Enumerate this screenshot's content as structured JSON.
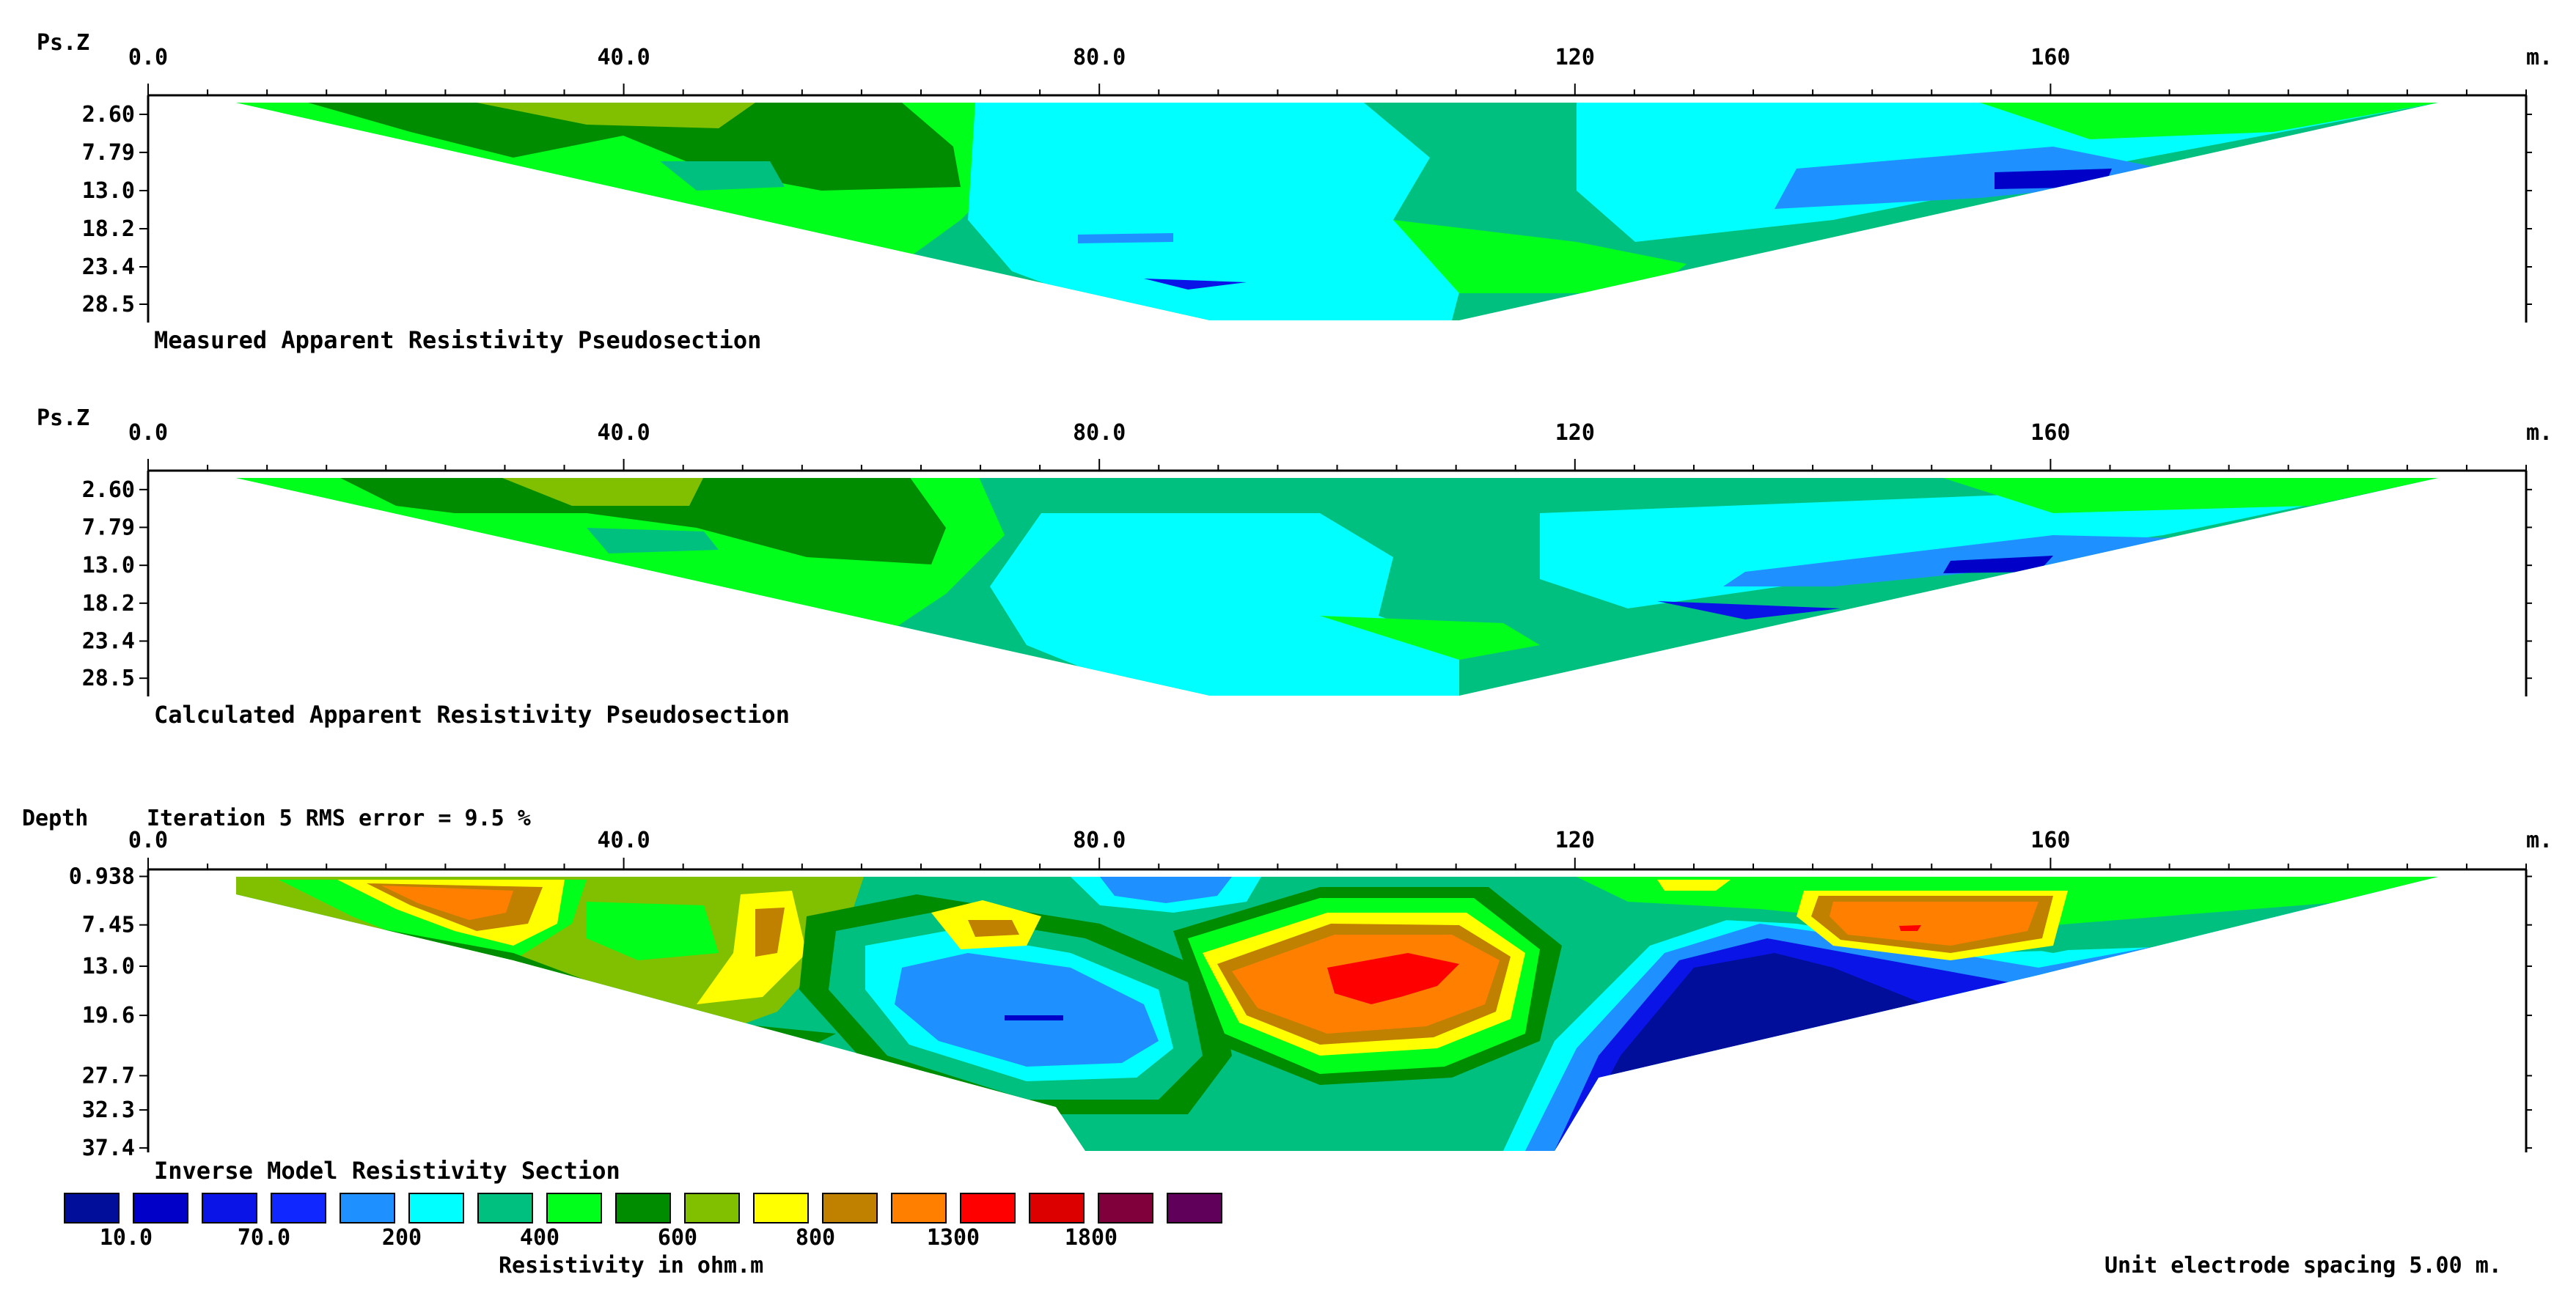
{
  "chart_data": [
    {
      "type": "heatmap",
      "title": "Measured Apparent Resistivity Pseudosection",
      "ylabel": "Ps.Z",
      "xlabel": "m.",
      "x_ticks": [
        "0.0",
        "40.0",
        "80.0",
        "120",
        "160"
      ],
      "x_tick_values": [
        0,
        40,
        80,
        120,
        160
      ],
      "xlim": [
        0,
        200
      ],
      "y_ticks": [
        "2.60",
        "7.79",
        "13.0",
        "18.2",
        "23.4",
        "28.5"
      ],
      "y_tick_values": [
        2.6,
        7.79,
        13.0,
        18.2,
        23.4,
        28.5
      ],
      "ylim": [
        0,
        31
      ],
      "data_extent_x": [
        7.5,
        193
      ],
      "data_bottom_depth": 31
    },
    {
      "type": "heatmap",
      "title": "Calculated Apparent Resistivity Pseudosection",
      "ylabel": "Ps.Z",
      "xlabel": "m.",
      "x_ticks": [
        "0.0",
        "40.0",
        "80.0",
        "120",
        "160"
      ],
      "x_tick_values": [
        0,
        40,
        80,
        120,
        160
      ],
      "xlim": [
        0,
        200
      ],
      "y_ticks": [
        "2.60",
        "7.79",
        "13.0",
        "18.2",
        "23.4",
        "28.5"
      ],
      "y_tick_values": [
        2.6,
        7.79,
        13.0,
        18.2,
        23.4,
        28.5
      ],
      "ylim": [
        0,
        31
      ],
      "data_extent_x": [
        7.5,
        193
      ],
      "data_bottom_depth": 31
    },
    {
      "type": "heatmap",
      "title": "Inverse Model Resistivity Section",
      "ylabel": "Depth",
      "subtitle": "Iteration 5 RMS error = 9.5 %",
      "xlabel": "m.",
      "x_ticks": [
        "0.0",
        "40.0",
        "80.0",
        "120",
        "160"
      ],
      "x_tick_values": [
        0,
        40,
        80,
        120,
        160
      ],
      "xlim": [
        0,
        200
      ],
      "y_ticks": [
        "0.938",
        "7.45",
        "13.0",
        "19.6",
        "27.7",
        "32.3",
        "37.4"
      ],
      "y_tick_values": [
        0.938,
        7.45,
        13.0,
        19.6,
        27.7,
        32.3,
        37.4
      ],
      "ylim": [
        0,
        38
      ],
      "data_extent_x": [
        7.5,
        193
      ],
      "data_bottom_depth": 37.4,
      "legend": {
        "title": "Resistivity in ohm.m",
        "labels": [
          "10.0",
          "70.0",
          "200",
          "400",
          "600",
          "800",
          "1300",
          "1800"
        ],
        "colors": [
          "#000e99",
          "#0000c8",
          "#0a14e6",
          "#1028ff",
          "#1e90ff",
          "#00ffff",
          "#00c080",
          "#00ff1a",
          "#008c00",
          "#80c000",
          "#ffff00",
          "#c08000",
          "#ff8000",
          "#ff0000",
          "#dc0000",
          "#80003c",
          "#60005a"
        ]
      }
    }
  ],
  "footer": {
    "spacing_note": "Unit electrode spacing 5.00 m."
  },
  "palette": {
    "dark_blue": "#000e99",
    "blue": "#0a14e6",
    "mid_blue": "#1e90ff",
    "cyan": "#00ffff",
    "teal": "#00c080",
    "green": "#00ff1a",
    "dark_green": "#008c00",
    "olive": "#80c000",
    "yellow": "#ffff00",
    "brown": "#c08000",
    "orange": "#ff8000",
    "red": "#ff0000"
  }
}
